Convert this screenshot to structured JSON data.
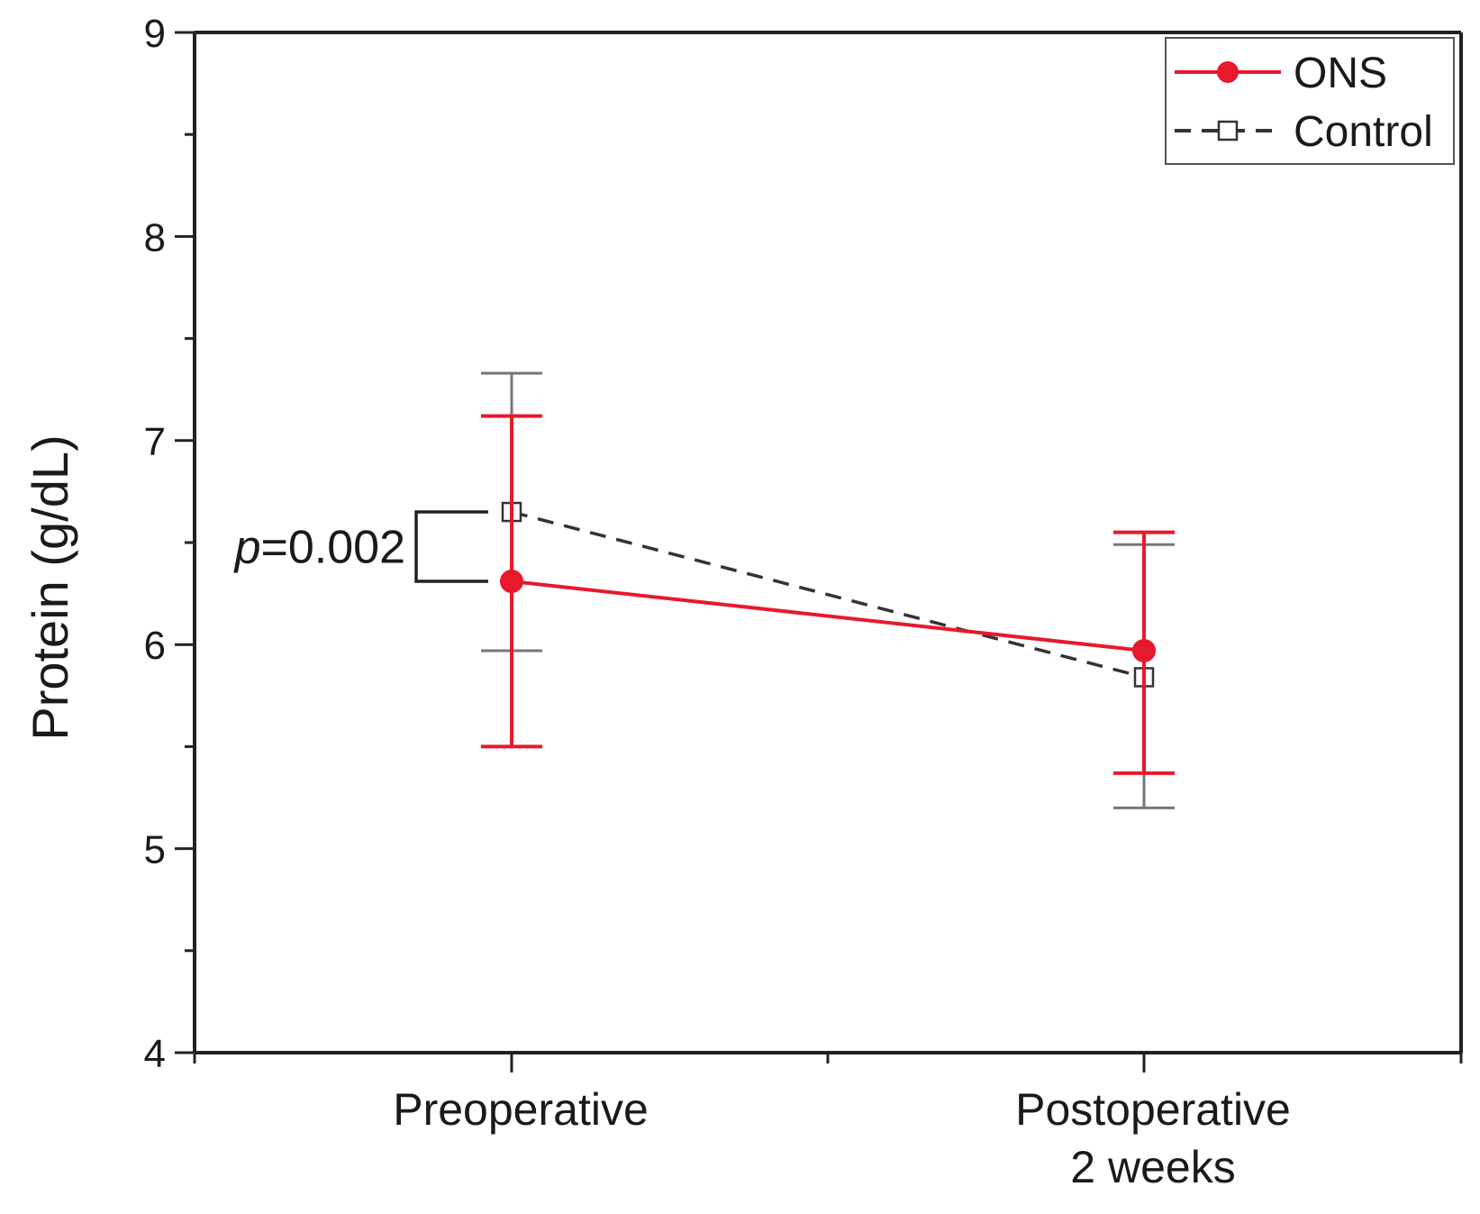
{
  "chart_data": {
    "type": "line",
    "title": "",
    "xlabel": "",
    "ylabel": "Protein (g/dL)",
    "categories": [
      [
        "Preoperative"
      ],
      [
        "Postoperative",
        "2 weeks"
      ]
    ],
    "ylim": [
      4,
      9
    ],
    "yticks": [
      4,
      5,
      6,
      7,
      8,
      9
    ],
    "y_minor_step": 0.5,
    "series": [
      {
        "name": "ONS",
        "color": "#e8192c",
        "line_style": "solid",
        "marker": "filled-circle",
        "values": [
          6.31,
          5.97
        ],
        "err_low": [
          5.5,
          5.37
        ],
        "err_high": [
          7.12,
          6.55
        ]
      },
      {
        "name": "Control",
        "color": "#333333",
        "line_style": "dashed",
        "marker": "open-square",
        "values": [
          6.65,
          5.84
        ],
        "err_low": [
          5.97,
          5.2
        ],
        "err_high": [
          7.33,
          6.49
        ]
      }
    ],
    "annotation": {
      "p_label": "p",
      "p_value": "=0.002",
      "between": "Preoperative"
    },
    "legend_position": "top-right",
    "grid": false
  }
}
